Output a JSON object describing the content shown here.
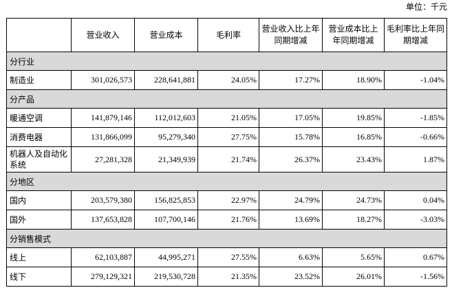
{
  "unit_label": "单位：千元",
  "colors": {
    "section_row_background": "#d9d9d9",
    "table_border": "#000000",
    "text": "#000000"
  },
  "table": {
    "columns": [
      "",
      "营业收入",
      "营业成本",
      "毛利率",
      "营业收入比上年同期增减",
      "营业成本比上年同期增减",
      "毛利率比上年同期增减"
    ],
    "sections": [
      {
        "title": "分行业",
        "rows": [
          {
            "label": "制造业",
            "values": [
              "301,026,573",
              "228,641,881",
              "24.05%",
              "17.27%",
              "18.90%",
              "-1.04%"
            ]
          }
        ]
      },
      {
        "title": "分产品",
        "rows": [
          {
            "label": "暖通空调",
            "values": [
              "141,879,146",
              "112,012,603",
              "21.05%",
              "17.05%",
              "19.85%",
              "-1.85%"
            ]
          },
          {
            "label": "消费电器",
            "values": [
              "131,866,099",
              "95,279,340",
              "27.75%",
              "15.78%",
              "16.85%",
              "-0.66%"
            ]
          },
          {
            "label": "机器人及自动化系统",
            "values": [
              "27,281,328",
              "21,349,939",
              "21.74%",
              "26.37%",
              "23.43%",
              "1.87%"
            ]
          }
        ]
      },
      {
        "title": "分地区",
        "rows": [
          {
            "label": "国内",
            "values": [
              "203,579,380",
              "156,825,853",
              "22.97%",
              "24.79%",
              "24.73%",
              "0.04%"
            ]
          },
          {
            "label": "国外",
            "values": [
              "137,653,828",
              "107,700,146",
              "21.76%",
              "13.69%",
              "18.27%",
              "-3.03%"
            ]
          }
        ]
      },
      {
        "title": "分销售模式",
        "rows": [
          {
            "label": "线上",
            "values": [
              "62,103,887",
              "44,995,271",
              "27.55%",
              "6.63%",
              "5.65%",
              "0.67%"
            ]
          },
          {
            "label": "线下",
            "values": [
              "279,129,321",
              "219,530,728",
              "21.35%",
              "23.52%",
              "26.01%",
              "-1.56%"
            ]
          }
        ]
      }
    ]
  }
}
